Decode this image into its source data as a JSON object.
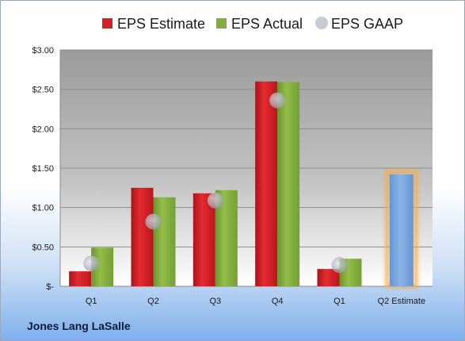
{
  "company_name": "Jones Lang LaSalle",
  "chart_data": {
    "type": "bar",
    "title": "",
    "xlabel": "",
    "ylabel": "",
    "categories": [
      "Q1",
      "Q2",
      "Q3",
      "Q4",
      "Q1",
      "Q2 Estimate"
    ],
    "ylim": [
      0,
      3
    ],
    "yticks": [
      {
        "value": 0,
        "label": "$-"
      },
      {
        "value": 0.5,
        "label": "$0.50"
      },
      {
        "value": 1.0,
        "label": "$1.00"
      },
      {
        "value": 1.5,
        "label": "$1.50"
      },
      {
        "value": 2.0,
        "label": "$2.00"
      },
      {
        "value": 2.5,
        "label": "$2.50"
      },
      {
        "value": 3.0,
        "label": "$3.00"
      }
    ],
    "legend_position": "top",
    "grid": true,
    "series": [
      {
        "name": "EPS Estimate",
        "kind": "bar",
        "color": "#d42027",
        "values": [
          0.19,
          1.25,
          1.18,
          2.6,
          0.22,
          null
        ]
      },
      {
        "name": "EPS Actual",
        "kind": "bar",
        "color": "#84ac3c",
        "values": [
          0.49,
          1.13,
          1.22,
          2.59,
          0.35,
          null
        ]
      },
      {
        "name": "EPS GAAP",
        "kind": "marker",
        "color": "#b9bec7",
        "values": [
          0.29,
          0.82,
          1.09,
          2.36,
          0.27,
          null
        ]
      }
    ],
    "forecast": {
      "category": "Q2 Estimate",
      "value": 1.42,
      "color": "#7aa4dc",
      "glow": "#f7a944"
    }
  }
}
